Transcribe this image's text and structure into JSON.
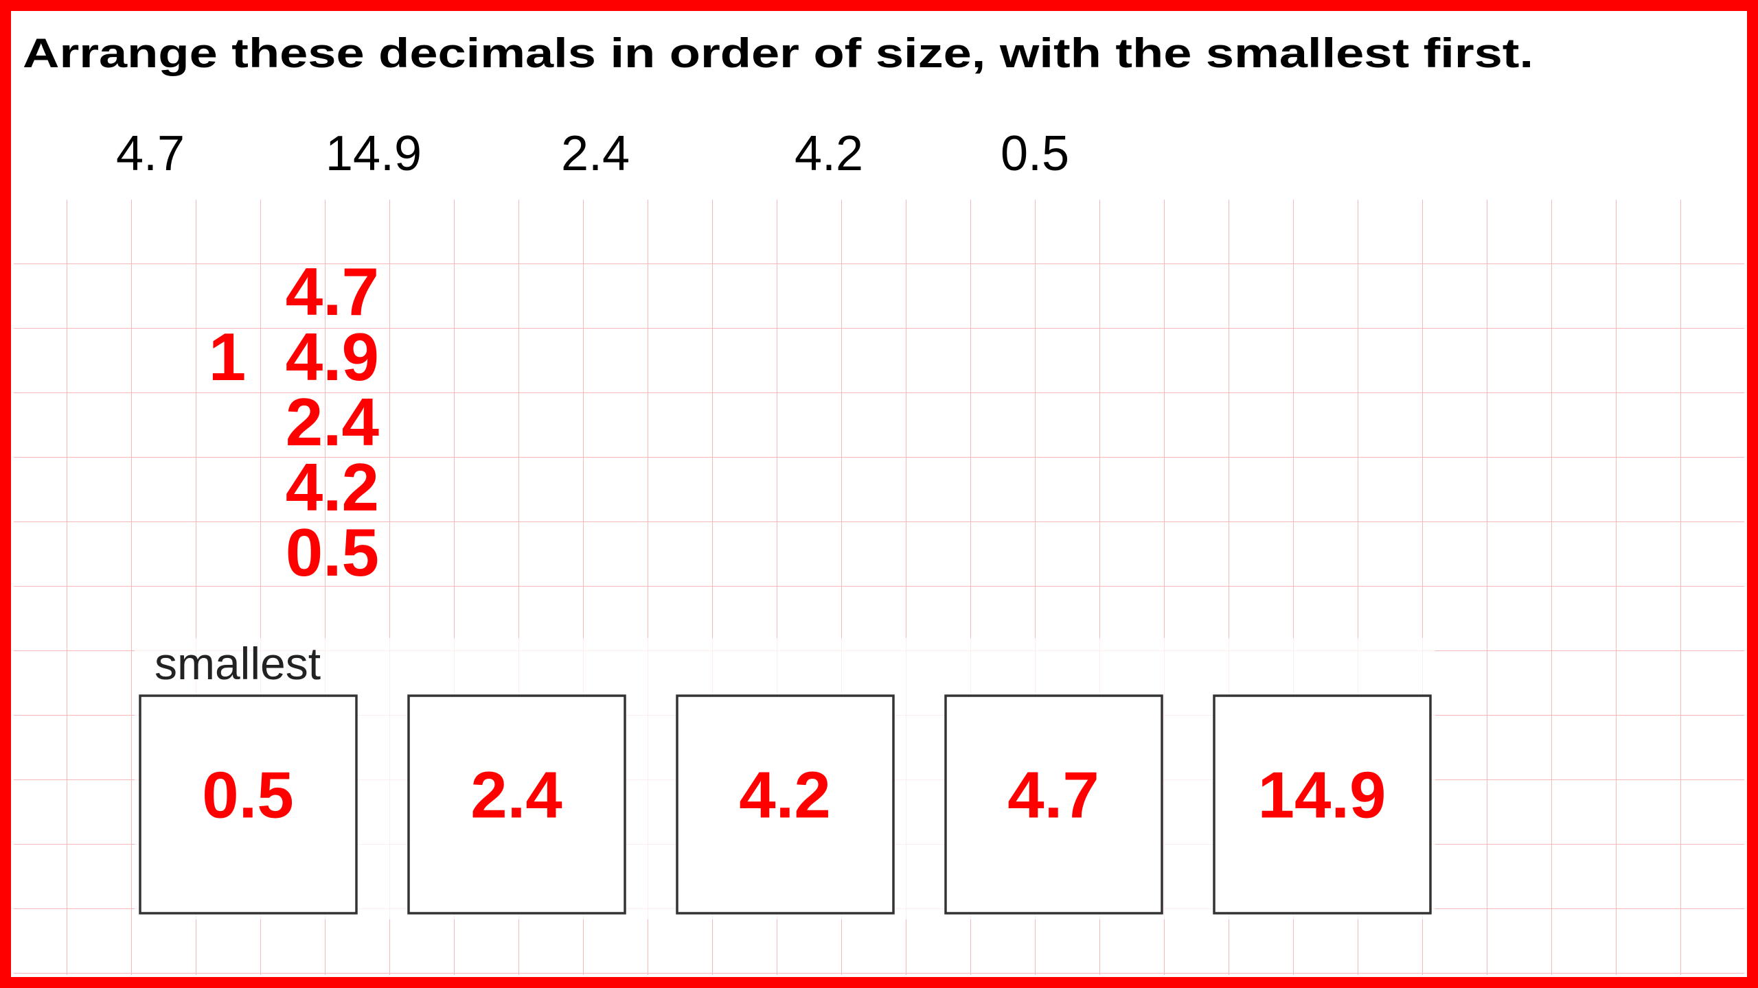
{
  "title": "Arrange these decimals in order of size, with the smallest first.",
  "numbers": [
    "4.7",
    "14.9",
    "2.4",
    "4.2",
    "0.5"
  ],
  "column": [
    {
      "units": "4.7"
    },
    {
      "tens": "1",
      "units": "4.9"
    },
    {
      "units": "2.4"
    },
    {
      "units": "4.2"
    },
    {
      "units": "0.5"
    }
  ],
  "answer_label": "smallest",
  "answers": [
    "0.5",
    "2.4",
    "4.2",
    "4.7",
    "14.9"
  ]
}
